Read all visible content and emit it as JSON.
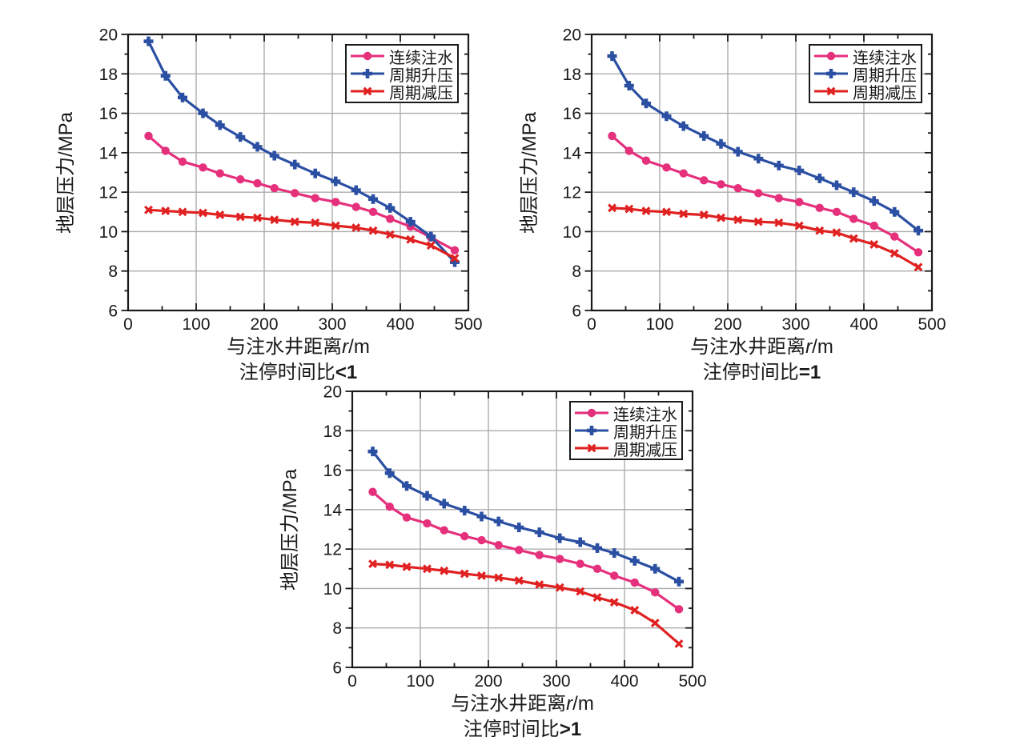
{
  "figure": {
    "background": "#ffffff",
    "ylabel": "地层压力/MPa",
    "xlabel": {
      "prefix": "与注水井距离",
      "var": "r",
      "suffix": "/m",
      "full": "与注水井距离r/m"
    },
    "legend_items": [
      "连续注水",
      "周期升压",
      "周期减压"
    ]
  },
  "colors": {
    "pink": "#E5307C",
    "blue": "#2B4FA2",
    "red": "#E02121",
    "grid": "#ACACAC",
    "frame": "#1A1A1A",
    "text": "#1A1A1A"
  },
  "chart_data": [
    {
      "type": "line",
      "subtitle": "注停时间比<1",
      "subtitle_prefix": "注停时间比",
      "subtitle_value": "<1",
      "xlabel": "与注水井距离r/m",
      "ylabel": "地层压力/MPa",
      "xlim": [
        0,
        500
      ],
      "ylim": [
        6,
        20
      ],
      "xticks": [
        0,
        100,
        200,
        300,
        400,
        500
      ],
      "xticks_minor": [
        50,
        150,
        250,
        350,
        450
      ],
      "yticks": [
        6,
        8,
        10,
        12,
        14,
        16,
        18,
        20
      ],
      "yticks_minor": [
        7,
        9,
        11,
        13,
        15,
        17,
        19
      ],
      "grid": true,
      "legend_position": "top-right",
      "x": [
        30,
        55,
        80,
        110,
        135,
        165,
        190,
        215,
        245,
        275,
        305,
        335,
        360,
        385,
        415,
        445,
        480
      ],
      "series": [
        {
          "name": "连续注水",
          "color_key": "pink",
          "marker": "circle",
          "values": [
            14.85,
            14.1,
            13.55,
            13.25,
            12.95,
            12.65,
            12.45,
            12.2,
            11.95,
            11.7,
            11.5,
            11.25,
            11.0,
            10.65,
            10.25,
            9.7,
            9.05
          ]
        },
        {
          "name": "周期升压",
          "color_key": "blue",
          "marker": "plus",
          "values": [
            19.65,
            17.9,
            16.8,
            16.0,
            15.4,
            14.8,
            14.3,
            13.85,
            13.4,
            12.95,
            12.55,
            12.1,
            11.65,
            11.2,
            10.5,
            9.75,
            8.45
          ]
        },
        {
          "name": "周期减压",
          "color_key": "red",
          "marker": "x",
          "values": [
            11.1,
            11.05,
            11.0,
            10.95,
            10.85,
            10.75,
            10.7,
            10.6,
            10.5,
            10.45,
            10.3,
            10.2,
            10.05,
            9.85,
            9.6,
            9.3,
            8.65
          ]
        }
      ]
    },
    {
      "type": "line",
      "subtitle": "注停时间比=1",
      "subtitle_prefix": "注停时间比",
      "subtitle_value": "=1",
      "xlabel": "与注水井距离r/m",
      "ylabel": "地层压力/MPa",
      "xlim": [
        0,
        500
      ],
      "ylim": [
        6,
        20
      ],
      "xticks": [
        0,
        100,
        200,
        300,
        400,
        500
      ],
      "xticks_minor": [
        50,
        150,
        250,
        350,
        450
      ],
      "yticks": [
        6,
        8,
        10,
        12,
        14,
        16,
        18,
        20
      ],
      "yticks_minor": [
        7,
        9,
        11,
        13,
        15,
        17,
        19
      ],
      "grid": true,
      "legend_position": "top-right",
      "x": [
        30,
        55,
        80,
        110,
        135,
        165,
        190,
        215,
        245,
        275,
        305,
        335,
        360,
        385,
        415,
        445,
        480
      ],
      "series": [
        {
          "name": "连续注水",
          "color_key": "pink",
          "marker": "circle",
          "values": [
            14.85,
            14.1,
            13.6,
            13.25,
            12.95,
            12.6,
            12.4,
            12.2,
            11.95,
            11.7,
            11.5,
            11.2,
            11.0,
            10.65,
            10.3,
            9.75,
            8.95
          ]
        },
        {
          "name": "周期升压",
          "color_key": "blue",
          "marker": "plus",
          "values": [
            18.9,
            17.4,
            16.5,
            15.85,
            15.35,
            14.85,
            14.45,
            14.05,
            13.7,
            13.35,
            13.1,
            12.7,
            12.35,
            12.0,
            11.55,
            11.0,
            10.05
          ]
        },
        {
          "name": "周期减压",
          "color_key": "red",
          "marker": "x",
          "values": [
            11.2,
            11.15,
            11.05,
            11.0,
            10.9,
            10.85,
            10.7,
            10.6,
            10.5,
            10.45,
            10.3,
            10.05,
            9.95,
            9.65,
            9.35,
            8.9,
            8.2
          ]
        }
      ]
    },
    {
      "type": "line",
      "subtitle": "注停时间比>1",
      "subtitle_prefix": "注停时间比",
      "subtitle_value": ">1",
      "xlabel": "与注水井距离r/m",
      "ylabel": "地层压力/MPa",
      "xlim": [
        0,
        500
      ],
      "ylim": [
        6,
        20
      ],
      "xticks": [
        0,
        100,
        200,
        300,
        400,
        500
      ],
      "xticks_minor": [
        50,
        150,
        250,
        350,
        450
      ],
      "yticks": [
        6,
        8,
        10,
        12,
        14,
        16,
        18,
        20
      ],
      "yticks_minor": [
        7,
        9,
        11,
        13,
        15,
        17,
        19
      ],
      "grid": true,
      "legend_position": "top-right",
      "x": [
        30,
        55,
        80,
        110,
        135,
        165,
        190,
        215,
        245,
        275,
        305,
        335,
        360,
        385,
        415,
        445,
        480
      ],
      "series": [
        {
          "name": "连续注水",
          "color_key": "pink",
          "marker": "circle",
          "values": [
            14.9,
            14.15,
            13.6,
            13.3,
            12.95,
            12.65,
            12.45,
            12.2,
            11.95,
            11.7,
            11.5,
            11.25,
            11.0,
            10.65,
            10.3,
            9.8,
            8.95
          ]
        },
        {
          "name": "周期升压",
          "color_key": "blue",
          "marker": "plus",
          "values": [
            16.95,
            15.85,
            15.2,
            14.7,
            14.3,
            13.95,
            13.65,
            13.4,
            13.1,
            12.85,
            12.55,
            12.35,
            12.05,
            11.8,
            11.4,
            11.0,
            10.35
          ]
        },
        {
          "name": "周期减压",
          "color_key": "red",
          "marker": "x",
          "values": [
            11.25,
            11.2,
            11.1,
            11.0,
            10.9,
            10.75,
            10.65,
            10.55,
            10.4,
            10.2,
            10.05,
            9.85,
            9.55,
            9.3,
            8.9,
            8.25,
            7.2
          ]
        }
      ]
    }
  ]
}
